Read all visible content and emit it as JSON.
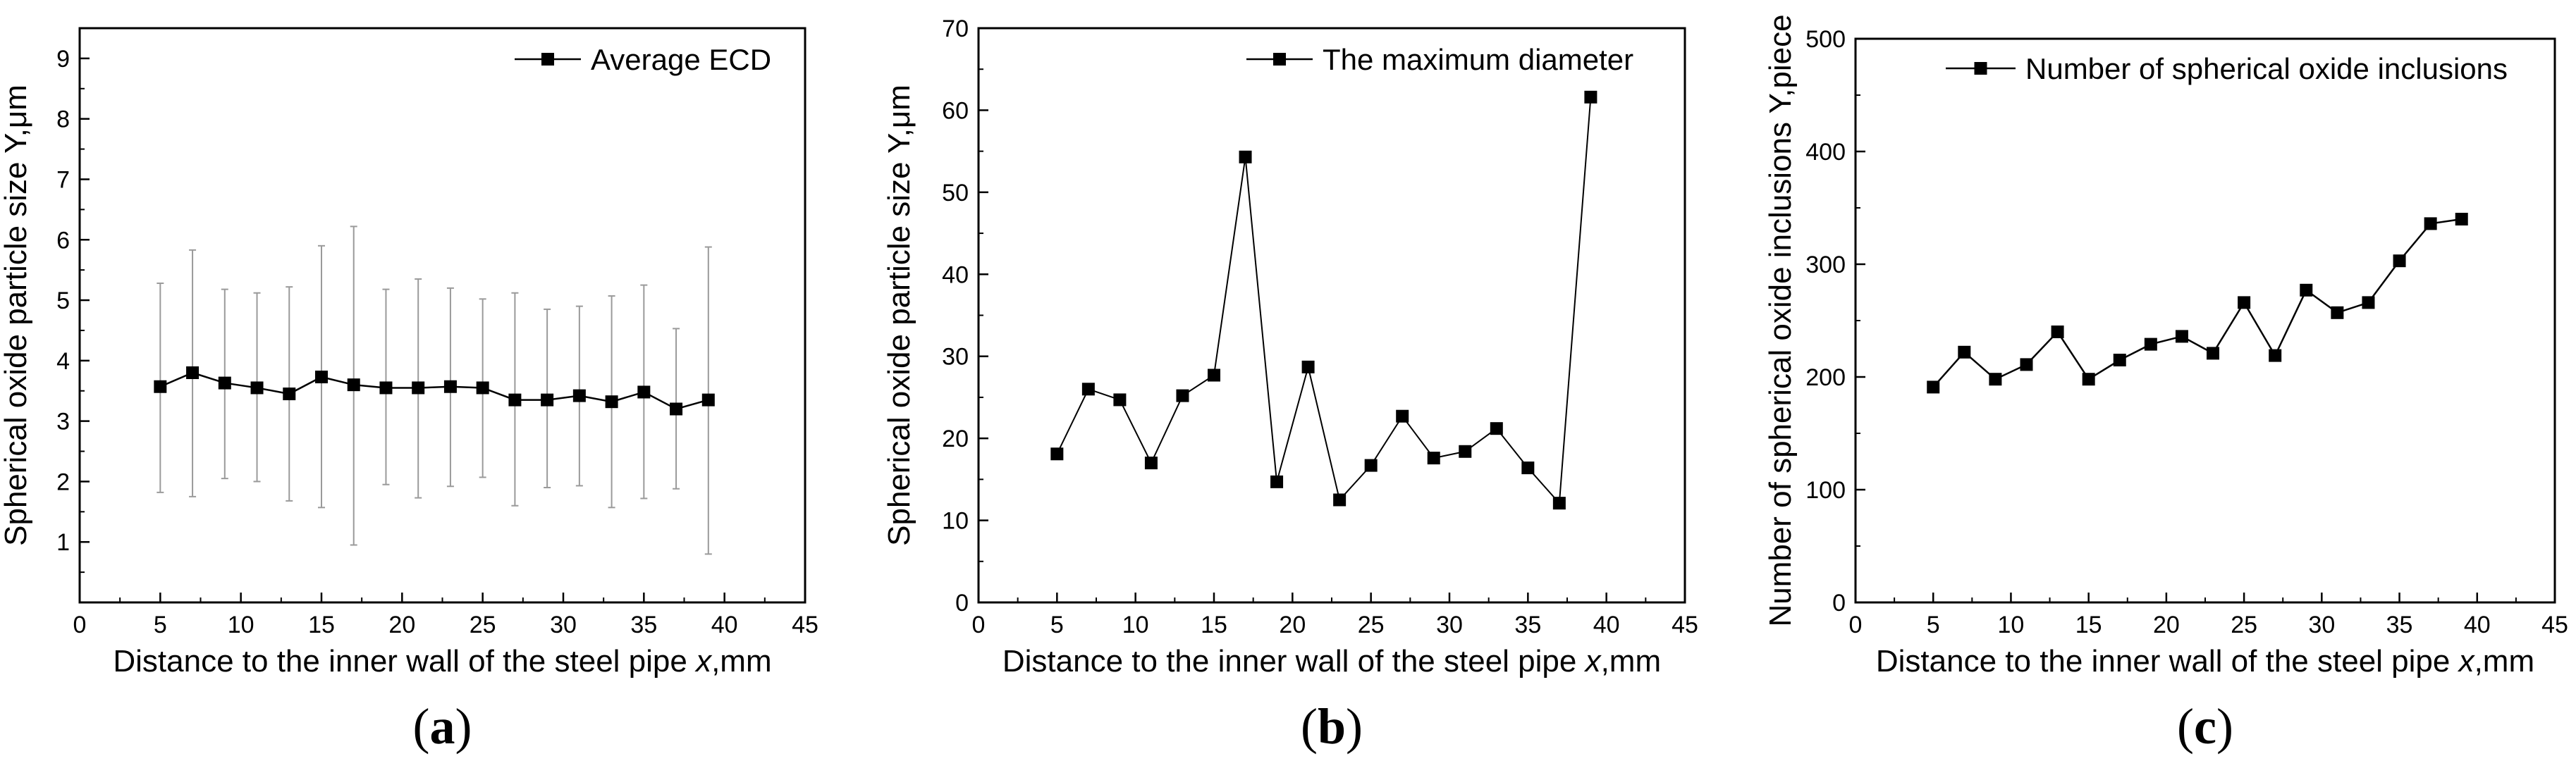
{
  "chart_data": [
    {
      "type": "line",
      "panel_label": "(a)",
      "panel_letter": "a",
      "title": "",
      "xlabel": "Distance to the inner wall of the steel pipe x,mm",
      "xlabel_parts": [
        "Distance to the inner wall of the steel pipe ",
        "x",
        ",mm"
      ],
      "ylabel": "Spherical oxide particle size Y,μm",
      "xlim": [
        0,
        45
      ],
      "ylim": [
        0,
        9.5
      ],
      "xticks": [
        0,
        5,
        10,
        15,
        20,
        25,
        30,
        35,
        40,
        45
      ],
      "yticks": [
        1,
        2,
        3,
        4,
        5,
        6,
        7,
        8,
        9
      ],
      "legend": "Average ECD",
      "legend_position": "top-right",
      "x": [
        5,
        7,
        9,
        11,
        13,
        15,
        17,
        19,
        21,
        23,
        25,
        27,
        29,
        31,
        33,
        35,
        37,
        39
      ],
      "values": [
        3.57,
        3.8,
        3.63,
        3.55,
        3.45,
        3.73,
        3.6,
        3.55,
        3.55,
        3.57,
        3.55,
        3.35,
        3.35,
        3.42,
        3.32,
        3.48,
        3.2,
        3.35
      ],
      "error_low": [
        1.82,
        1.75,
        2.05,
        2.0,
        1.68,
        1.57,
        0.95,
        1.95,
        1.73,
        1.92,
        2.07,
        1.6,
        1.9,
        1.93,
        1.57,
        1.72,
        1.88,
        0.8
      ],
      "error_high": [
        5.28,
        5.83,
        5.18,
        5.12,
        5.22,
        5.9,
        6.22,
        5.18,
        5.35,
        5.2,
        5.02,
        5.12,
        4.85,
        4.9,
        5.07,
        5.25,
        4.53,
        5.88
      ]
    },
    {
      "type": "line",
      "panel_label": "(b)",
      "panel_letter": "b",
      "title": "",
      "xlabel": "Distance to the inner wall of the steel pipe x,mm",
      "xlabel_parts": [
        "Distance to the inner wall of the steel pipe ",
        "x",
        ",mm"
      ],
      "ylabel": "Spherical oxide particle size Y,μm",
      "xlim": [
        0,
        45
      ],
      "ylim": [
        0,
        70
      ],
      "xticks": [
        0,
        5,
        10,
        15,
        20,
        25,
        30,
        35,
        40,
        45
      ],
      "yticks": [
        0,
        10,
        20,
        30,
        40,
        50,
        60,
        70
      ],
      "legend": "The maximum diameter",
      "legend_position": "top-right",
      "x": [
        5,
        7,
        9,
        11,
        13,
        15,
        17,
        19,
        21,
        23,
        25,
        27,
        29,
        31,
        33,
        35,
        37,
        39
      ],
      "values": [
        18.1,
        26.0,
        24.7,
        17.0,
        25.2,
        27.7,
        54.3,
        14.7,
        28.7,
        12.5,
        16.7,
        22.7,
        17.6,
        18.4,
        21.2,
        16.4,
        12.1,
        61.6
      ]
    },
    {
      "type": "line",
      "panel_label": "(c)",
      "panel_letter": "c",
      "title": "",
      "xlabel": "Distance to the inner wall of the steel pipe x,mm",
      "xlabel_parts": [
        "Distance to the inner wall of the steel pipe ",
        "x",
        ",mm"
      ],
      "ylabel": "Number of spherical oxide inclusions Y,piece",
      "xlim": [
        0,
        45
      ],
      "ylim": [
        0,
        500
      ],
      "xticks": [
        0,
        5,
        10,
        15,
        20,
        25,
        30,
        35,
        40,
        45
      ],
      "yticks": [
        0,
        100,
        200,
        300,
        400,
        500
      ],
      "legend": "Number of spherical oxide inclusions",
      "legend_position": "top-right",
      "x": [
        5,
        7,
        9,
        11,
        13,
        15,
        17,
        19,
        21,
        23,
        25,
        27,
        29,
        31,
        33,
        35,
        37,
        39
      ],
      "values": [
        191,
        222,
        198,
        211,
        240,
        198,
        215,
        229,
        236,
        221,
        266,
        219,
        277,
        257,
        266,
        303,
        336,
        340
      ]
    }
  ]
}
